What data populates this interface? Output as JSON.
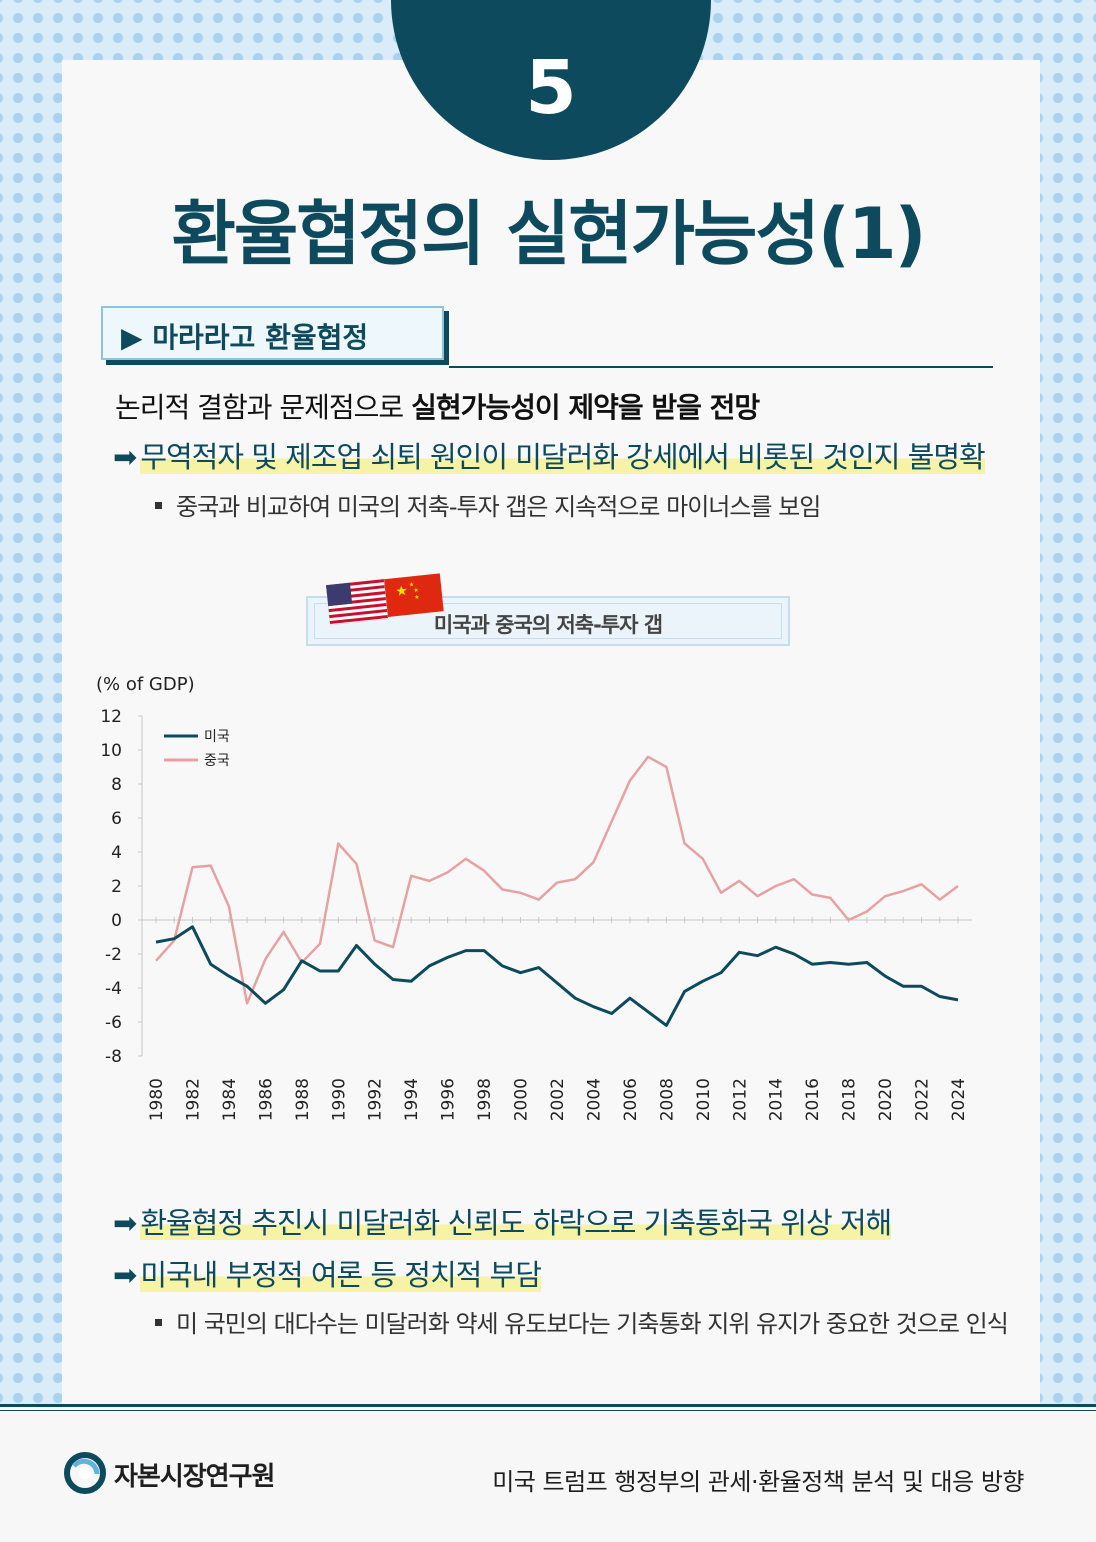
{
  "badge_number": "5",
  "title": "환율협정의 실현가능성(1)",
  "section_label": "▶ 마라라고 환율협정",
  "intro": {
    "plain": "논리적 결함과 문제점으로 ",
    "bold": "실현가능성이 제약을 받을 전망"
  },
  "arrow_points": [
    "무역적자 및 제조업 쇠퇴 원인이 미달러화 강세에서 비롯된 것인지 불명확",
    "환율협정 추진시 미달러화 신뢰도 하락으로 기축통화국 위상 저해",
    "미국내 부정적 여론 등 정치적 부담"
  ],
  "bullets": [
    "중국과 비교하여 미국의 저축-투자 갭은 지속적으로 마이너스를 보임",
    "미 국민의 대다수는 미달러화 약세 유도보다는 기축통화 지위 유지가 중요한 것으로 인식"
  ],
  "chart_data": {
    "type": "line",
    "title": "미국과 중국의 저축-투자 갭",
    "ylabel": "(% of GDP)",
    "ylim": [
      -8,
      12
    ],
    "yticks": [
      12,
      10,
      8,
      6,
      4,
      2,
      0,
      -2,
      -4,
      -6,
      -8
    ],
    "x": [
      1980,
      1981,
      1982,
      1983,
      1984,
      1985,
      1986,
      1987,
      1988,
      1989,
      1990,
      1991,
      1992,
      1993,
      1994,
      1995,
      1996,
      1997,
      1998,
      1999,
      2000,
      2001,
      2002,
      2003,
      2004,
      2005,
      2006,
      2007,
      2008,
      2009,
      2010,
      2011,
      2012,
      2013,
      2014,
      2015,
      2016,
      2017,
      2018,
      2019,
      2020,
      2021,
      2022,
      2023,
      2024
    ],
    "xticks": [
      "1980",
      "1982",
      "1984",
      "1986",
      "1988",
      "1990",
      "1992",
      "1994",
      "1996",
      "1998",
      "2000",
      "2002",
      "2004",
      "2006",
      "2008",
      "2010",
      "2012",
      "2014",
      "2016",
      "2018",
      "2020",
      "2022",
      "2024"
    ],
    "series": [
      {
        "name": "미국",
        "color": "#0d4a5e",
        "values": [
          -1.3,
          -1.1,
          -0.4,
          -2.6,
          -3.3,
          -3.9,
          -4.9,
          -4.1,
          -2.4,
          -3.0,
          -3.0,
          -1.5,
          -2.6,
          -3.5,
          -3.6,
          -2.7,
          -2.2,
          -1.8,
          -1.8,
          -2.7,
          -3.1,
          -2.8,
          -3.7,
          -4.6,
          -5.1,
          -5.5,
          -4.6,
          -5.4,
          -6.2,
          -4.2,
          -3.6,
          -3.1,
          -1.9,
          -2.1,
          -1.6,
          -2.0,
          -2.6,
          -2.5,
          -2.6,
          -2.5,
          -3.3,
          -3.9,
          -3.9,
          -4.5,
          -4.7
        ]
      },
      {
        "name": "중국",
        "color": "#e8a1a1",
        "values": [
          -2.4,
          -1.2,
          3.1,
          3.2,
          0.8,
          -4.9,
          -2.3,
          -0.7,
          -2.5,
          -1.4,
          4.5,
          3.3,
          -1.2,
          -1.6,
          2.6,
          2.3,
          2.8,
          3.6,
          2.9,
          1.8,
          1.6,
          1.2,
          2.2,
          2.4,
          3.4,
          5.8,
          8.2,
          9.6,
          9.0,
          4.5,
          3.6,
          1.6,
          2.3,
          1.4,
          2.0,
          2.4,
          1.5,
          1.3,
          0.0,
          0.5,
          1.4,
          1.7,
          2.1,
          1.2,
          2.0
        ]
      }
    ]
  },
  "footer": {
    "org": "자본시장연구원",
    "report": "미국 트럼프 행정부의 관세·환율정책 분석 및 대응 방향"
  }
}
